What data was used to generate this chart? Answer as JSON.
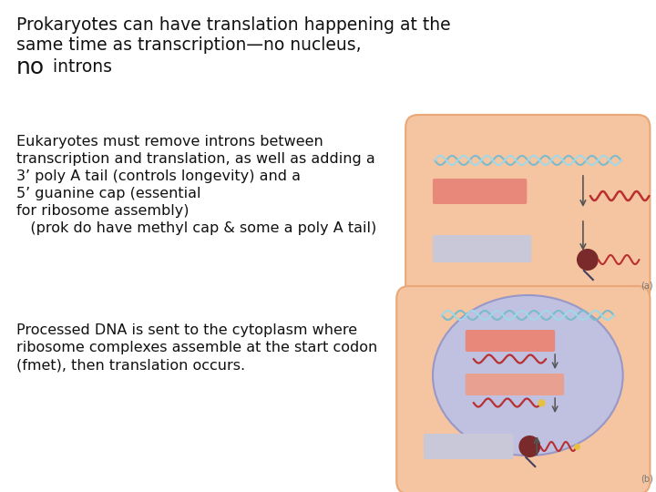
{
  "bg_color": "#ffffff",
  "cell_outer_color": "#f5c4a0",
  "cell_outer_border": "#e8a878",
  "cell_inner_color": "#c0c0e0",
  "cell_inner_border": "#9898c8",
  "dna_color1": "#7abccc",
  "dna_color2": "#a0d8e8",
  "rect_salmon": "#e8887a",
  "rect_lavender": "#c8c8d8",
  "rect_salmon2": "#e8a090",
  "arrow_color": "#555555",
  "ribosome_color": "#7a2a2a",
  "mrna_color": "#b83030",
  "mrna2_color": "#c84050",
  "tail_color": "#404080",
  "yellow_dot": "#e8c040",
  "text_color": "#111111",
  "label_color": "#777777",
  "line1": "Prokaryotes can have translation happening at the",
  "line2": "same time as transcription—no nucleus,",
  "line3_bold": "no",
  "line3_rest": " introns",
  "euk_lines": [
    "Eukaryotes must remove introns between",
    "transcription and translation, as well as adding a",
    "3’ poly A tail (controls longevity) and a",
    "5’ guanine cap (essential",
    "for ribosome assembly)",
    "   (prok do have methyl cap & some a poly A tail)"
  ],
  "proc_lines": [
    "Processed DNA is sent to the cytoplasm where",
    "ribosome complexes assemble at the start codon",
    "(fmet), then translation occurs."
  ]
}
